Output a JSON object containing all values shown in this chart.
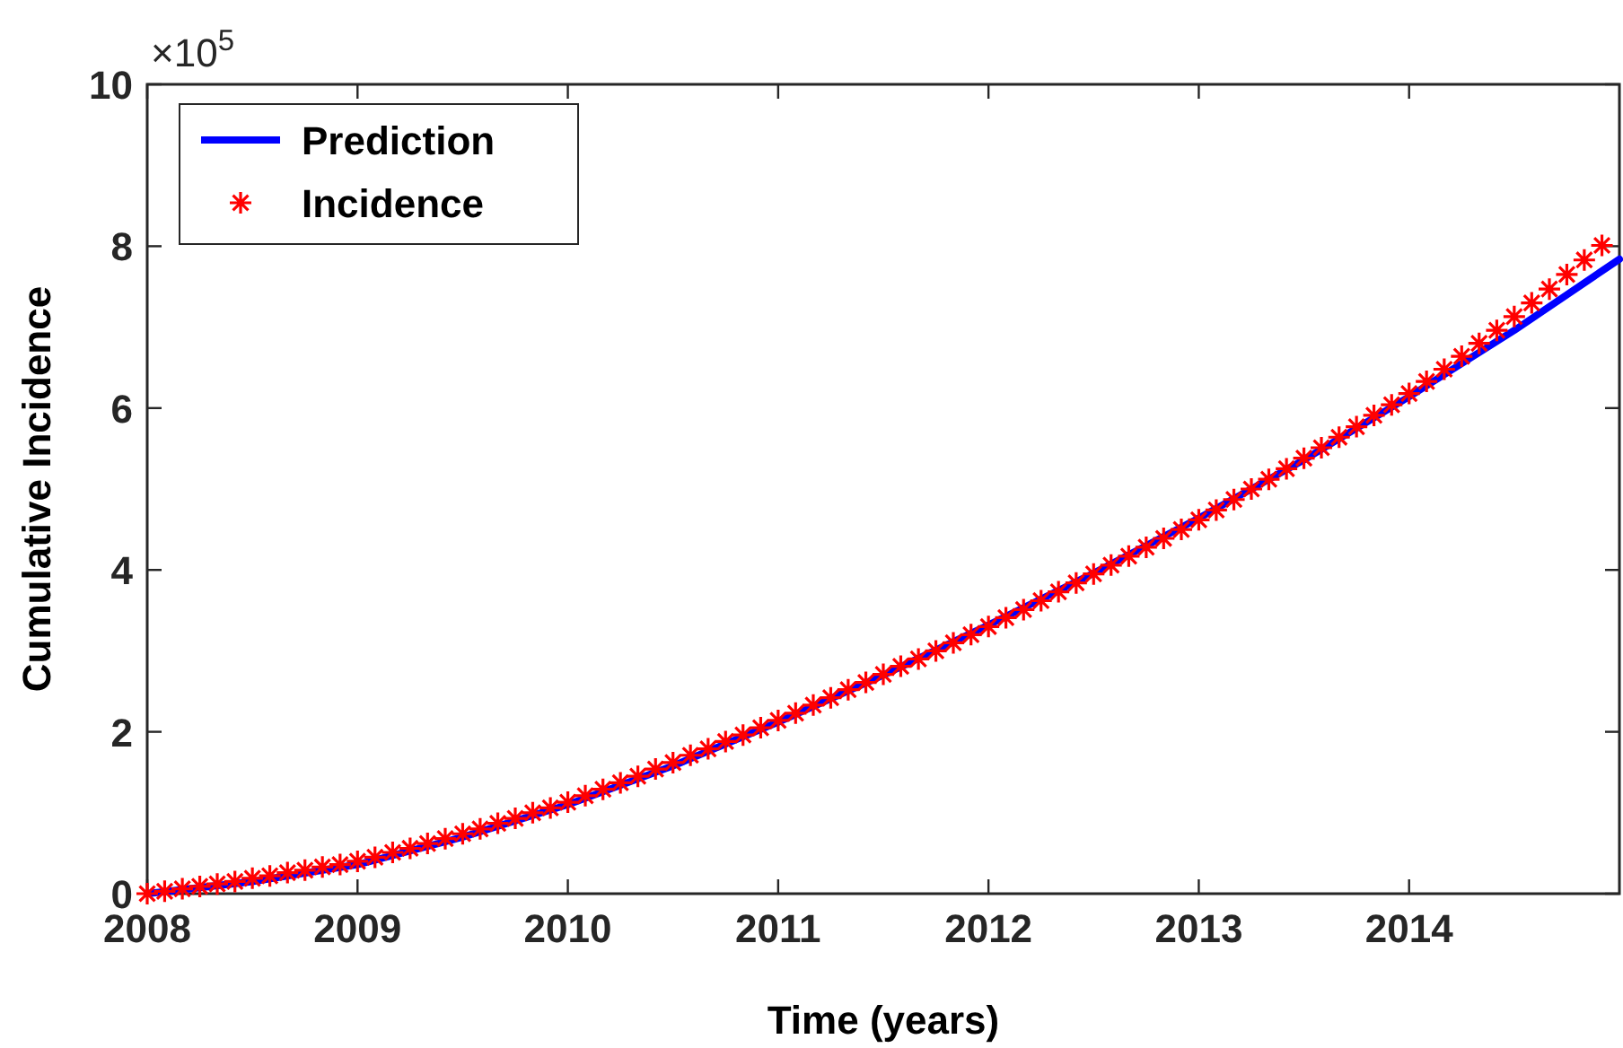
{
  "chart_data": {
    "type": "line",
    "xlabel": "Time (years)",
    "ylabel": "Cumulative Incidence",
    "annotations": [
      "×10$^{5}$"
    ],
    "xlim": [
      2008,
      2015
    ],
    "xticks": [
      2008,
      2009,
      2010,
      2011,
      2012,
      2013,
      2014
    ],
    "ylim": [
      0,
      10
    ],
    "yticks": [
      0,
      2,
      4,
      6,
      8,
      10
    ],
    "grid": false,
    "legend": "top left",
    "series": [
      {
        "name": "Prediction",
        "color": "#0000ff",
        "line_style": "solid",
        "marker": "none",
        "x": [
          2008,
          2008.5,
          2009,
          2009.5,
          2010,
          2010.5,
          2011,
          2011.5,
          2012,
          2012.5,
          2013,
          2013.5,
          2014,
          2014.5,
          2015
        ],
        "values": [
          0,
          0.15,
          0.36,
          0.7,
          1.1,
          1.58,
          2.12,
          2.7,
          3.32,
          3.96,
          4.64,
          5.36,
          6.14,
          6.96,
          7.84
        ]
      },
      {
        "name": "Incidence",
        "type": "scatter",
        "color": "#ff0000",
        "marker": "cross",
        "x": [
          2008,
          2008.083,
          2008.167,
          2008.25,
          2008.333,
          2008.417,
          2008.5,
          2008.583,
          2008.667,
          2008.75,
          2008.833,
          2008.917,
          2009,
          2009.083,
          2009.167,
          2009.25,
          2009.333,
          2009.417,
          2009.5,
          2009.583,
          2009.667,
          2009.75,
          2009.833,
          2009.917,
          2010,
          2010.083,
          2010.167,
          2010.25,
          2010.333,
          2010.417,
          2010.5,
          2010.583,
          2010.667,
          2010.75,
          2010.833,
          2010.917,
          2011,
          2011.083,
          2011.167,
          2011.25,
          2011.333,
          2011.417,
          2011.5,
          2011.583,
          2011.667,
          2011.75,
          2011.833,
          2011.917,
          2012,
          2012.083,
          2012.167,
          2012.25,
          2012.333,
          2012.417,
          2012.5,
          2012.583,
          2012.667,
          2012.75,
          2012.833,
          2012.917,
          2013,
          2013.083,
          2013.167,
          2013.25,
          2013.333,
          2013.417,
          2013.5,
          2013.583,
          2013.667,
          2013.75,
          2013.833,
          2013.917,
          2014,
          2014.083,
          2014.167,
          2014.25,
          2014.333,
          2014.417,
          2014.5,
          2014.583,
          2014.667,
          2014.75,
          2014.833,
          2014.917
        ],
        "values": [
          0,
          0.03,
          0.06,
          0.09,
          0.12,
          0.15,
          0.19,
          0.22,
          0.26,
          0.29,
          0.33,
          0.36,
          0.4,
          0.45,
          0.51,
          0.56,
          0.62,
          0.68,
          0.74,
          0.8,
          0.87,
          0.93,
          1.0,
          1.06,
          1.13,
          1.21,
          1.29,
          1.37,
          1.45,
          1.54,
          1.62,
          1.71,
          1.79,
          1.88,
          1.96,
          2.05,
          2.14,
          2.23,
          2.33,
          2.42,
          2.52,
          2.61,
          2.71,
          2.81,
          2.9,
          3.0,
          3.1,
          3.2,
          3.3,
          3.41,
          3.51,
          3.62,
          3.73,
          3.84,
          3.95,
          4.06,
          4.17,
          4.28,
          4.39,
          4.5,
          4.62,
          4.74,
          4.87,
          5.0,
          5.12,
          5.25,
          5.38,
          5.51,
          5.64,
          5.77,
          5.91,
          6.04,
          6.18,
          6.33,
          6.48,
          6.64,
          6.8,
          6.96,
          7.13,
          7.3,
          7.47,
          7.65,
          7.83,
          8.01
        ]
      }
    ]
  }
}
